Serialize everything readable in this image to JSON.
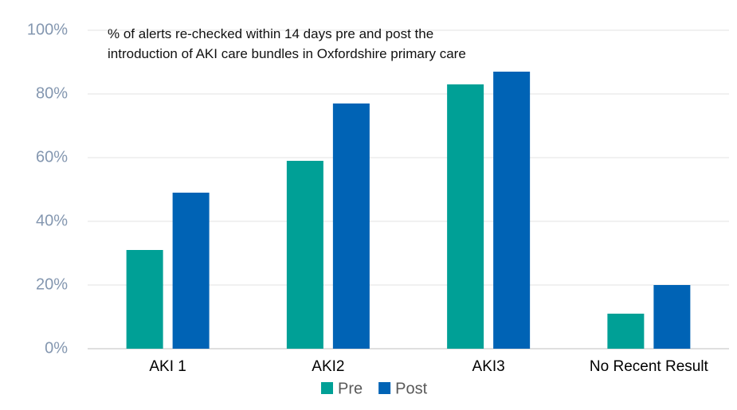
{
  "chart_data": {
    "type": "bar",
    "title": "% of alerts re-checked within 14 days pre and post the introduction of AKI care bundles in Oxfordshire primary care",
    "categories": [
      "AKI 1",
      "AKI2",
      "AKI3",
      "No Recent Result"
    ],
    "series": [
      {
        "name": "Pre",
        "color": "#00a096",
        "values": [
          31,
          59,
          83,
          11
        ]
      },
      {
        "name": "Post",
        "color": "#0063b5",
        "values": [
          49,
          77,
          87,
          20
        ]
      }
    ],
    "ylim": [
      0,
      100
    ],
    "yticks": [
      {
        "value": 0,
        "label": "0%"
      },
      {
        "value": 20,
        "label": "20%"
      },
      {
        "value": 40,
        "label": "40%"
      },
      {
        "value": 60,
        "label": "60%"
      },
      {
        "value": 80,
        "label": "80%"
      },
      {
        "value": 100,
        "label": "100%"
      }
    ],
    "grid": true,
    "legend": "bottom"
  }
}
